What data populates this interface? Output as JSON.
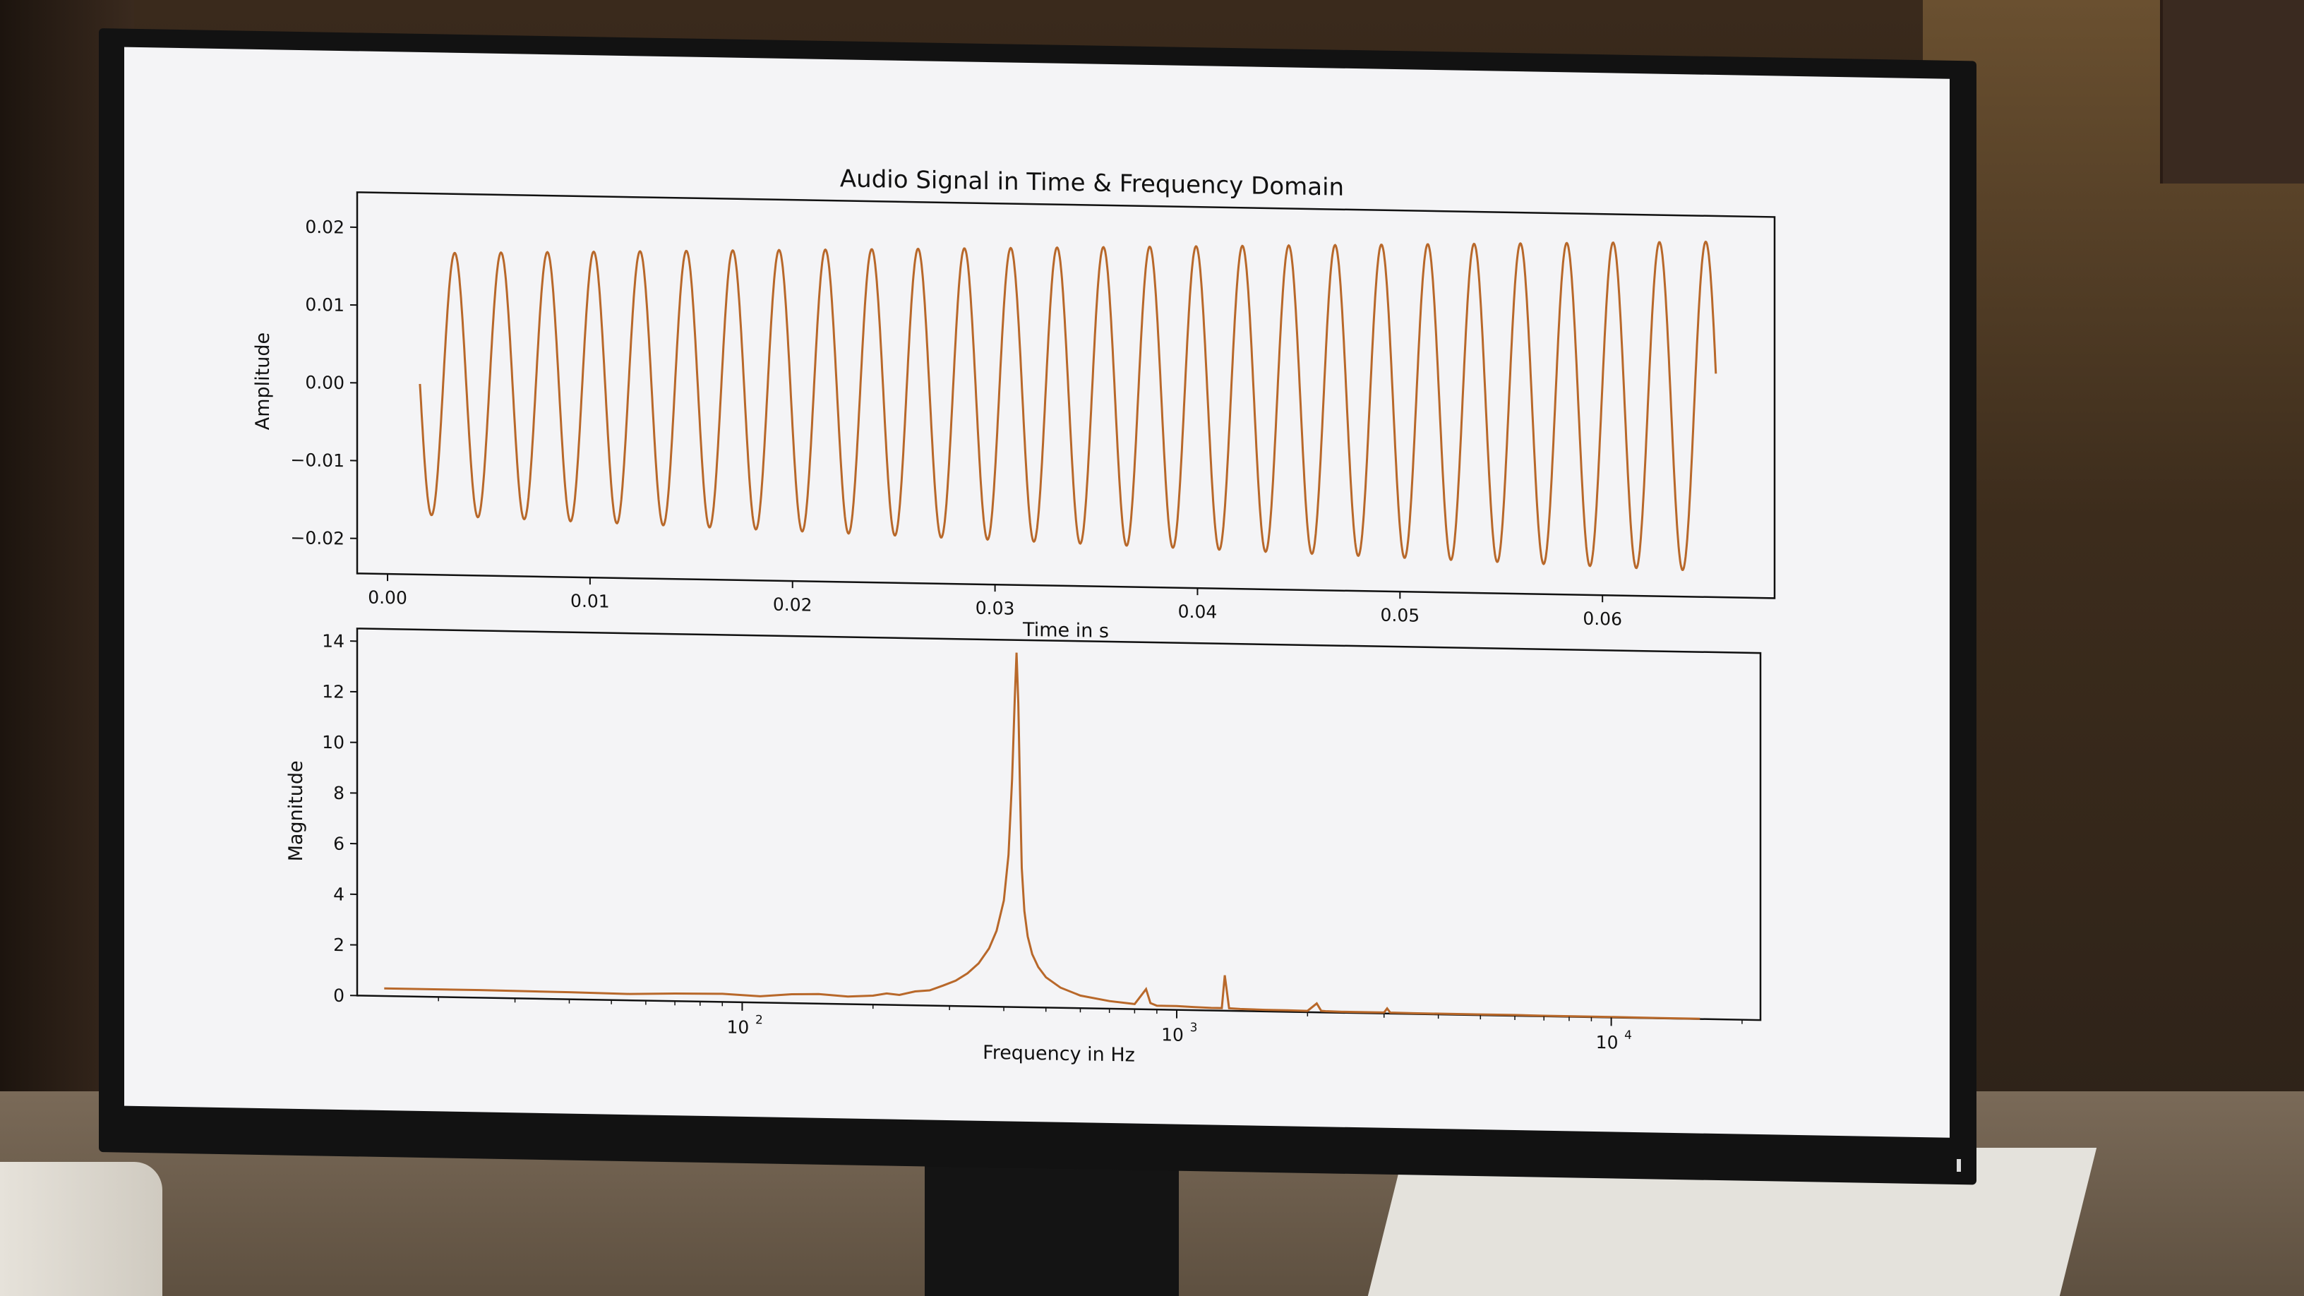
{
  "window": {
    "title": "Audio Signal in Time & Frequency Domain"
  },
  "chart_data": [
    {
      "type": "line",
      "title": "Audio Signal in Time & Frequency Domain",
      "xlabel": "Time in s",
      "ylabel": "Amplitude",
      "xlim": [
        -0.0015,
        0.0685
      ],
      "ylim": [
        -0.0245,
        0.0245
      ],
      "xticks": [
        0.0,
        0.01,
        0.02,
        0.03,
        0.04,
        0.05,
        0.06
      ],
      "xtick_labels": [
        "0.00",
        "0.01",
        "0.02",
        "0.03",
        "0.04",
        "0.05",
        "0.06"
      ],
      "yticks": [
        -0.02,
        -0.01,
        0.0,
        0.01,
        0.02
      ],
      "ytick_labels": [
        "−0.02",
        "−0.01",
        "0.00",
        "0.01",
        "0.02"
      ],
      "grid": false,
      "color": "#b8682a",
      "series": [
        {
          "signal": "sine",
          "x_start": 0.0016,
          "x_end": 0.0656,
          "frequency_hz": 437,
          "amplitude_start": 0.0168,
          "amplitude_end": 0.0212,
          "phase_deg": 180
        }
      ]
    },
    {
      "type": "line",
      "xlabel": "Frequency in Hz",
      "ylabel": "Magnitude",
      "xscale": "log",
      "xlim": [
        13,
        22050
      ],
      "ylim": [
        0,
        14.5
      ],
      "xticks": [
        100,
        1000,
        10000
      ],
      "xtick_labels": [
        {
          "base": "10",
          "exp": "2"
        },
        {
          "base": "10",
          "exp": "3"
        },
        {
          "base": "10",
          "exp": "4"
        }
      ],
      "yticks": [
        0,
        2,
        4,
        6,
        8,
        10,
        12,
        14
      ],
      "ytick_labels": [
        "0",
        "2",
        "4",
        "6",
        "8",
        "10",
        "12",
        "14"
      ],
      "grid": false,
      "color": "#b8682a",
      "series": [
        {
          "x": [
            15,
            25,
            40,
            55,
            70,
            90,
            110,
            130,
            150,
            175,
            200,
            215,
            230,
            250,
            270,
            290,
            310,
            330,
            350,
            370,
            385,
            400,
            410,
            418,
            424,
            428,
            432,
            436,
            440,
            446,
            454,
            465,
            480,
            500,
            540,
            600,
            700,
            800,
            850,
            870,
            900,
            1000,
            1100,
            1200,
            1270,
            1290,
            1320,
            1400,
            1600,
            1800,
            2000,
            2100,
            2150,
            2200,
            2400,
            2700,
            3000,
            3050,
            3100,
            3500,
            4000,
            5000,
            6000,
            7000,
            8000,
            10000,
            13000,
            16000
          ],
          "y": [
            0.3,
            0.3,
            0.28,
            0.25,
            0.3,
            0.32,
            0.25,
            0.35,
            0.38,
            0.3,
            0.35,
            0.45,
            0.4,
            0.55,
            0.6,
            0.8,
            1.0,
            1.3,
            1.7,
            2.3,
            3.0,
            4.2,
            6.0,
            9.0,
            12.2,
            14.0,
            12.0,
            8.5,
            5.5,
            3.8,
            2.8,
            2.1,
            1.6,
            1.2,
            0.8,
            0.5,
            0.3,
            0.2,
            0.8,
            0.25,
            0.15,
            0.15,
            0.12,
            0.1,
            0.1,
            1.4,
            0.1,
            0.08,
            0.06,
            0.06,
            0.05,
            0.35,
            0.06,
            0.05,
            0.04,
            0.04,
            0.04,
            0.2,
            0.04,
            0.03,
            0.03,
            0.03,
            0.03,
            0.02,
            0.02,
            0.02,
            0.01,
            0.01
          ]
        }
      ]
    }
  ]
}
